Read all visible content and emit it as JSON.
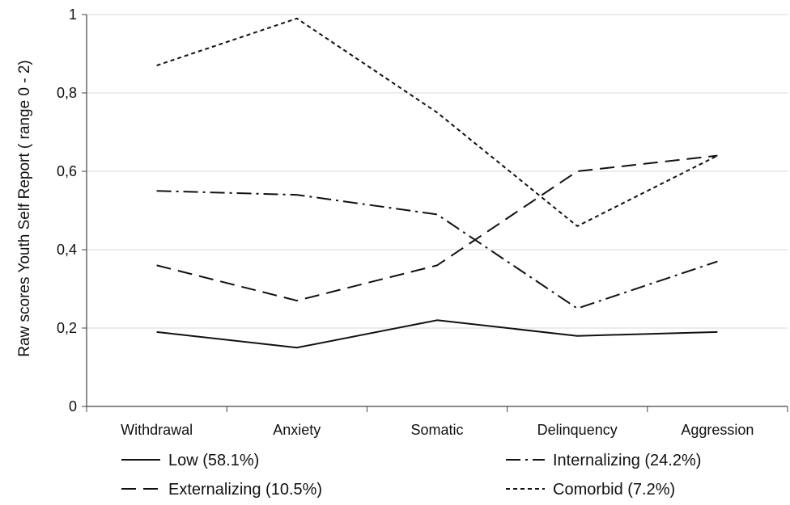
{
  "chart_data": {
    "type": "line",
    "title": "",
    "xlabel": "",
    "ylabel": "Raw scores Youth Self Report ( range 0 - 2)",
    "categories": [
      "Withdrawal",
      "Anxiety",
      "Somatic",
      "Delinquency",
      "Aggression"
    ],
    "ylim": [
      0,
      1
    ],
    "yticks": [
      0,
      0.2,
      0.4,
      0.6,
      0.8,
      1
    ],
    "ytick_labels": [
      "0",
      "0,2",
      "0,4",
      "0,6",
      "0,8",
      "1"
    ],
    "grid": true,
    "legend_position": "bottom",
    "series": [
      {
        "name": "Low (58.1%)",
        "style": "solid",
        "values": [
          0.19,
          0.15,
          0.22,
          0.18,
          0.19
        ]
      },
      {
        "name": "Internalizing (24.2%)",
        "style": "dash-dot",
        "values": [
          0.55,
          0.54,
          0.49,
          0.25,
          0.37
        ]
      },
      {
        "name": "Externalizing (10.5%)",
        "style": "long-dash",
        "values": [
          0.36,
          0.27,
          0.36,
          0.6,
          0.64
        ]
      },
      {
        "name": "Comorbid (7.2%)",
        "style": "short-dash",
        "values": [
          0.87,
          0.99,
          0.75,
          0.46,
          0.64
        ]
      }
    ],
    "colors": {
      "line": "#111111",
      "grid": "#d9d9d9",
      "axis": "#444444"
    }
  }
}
